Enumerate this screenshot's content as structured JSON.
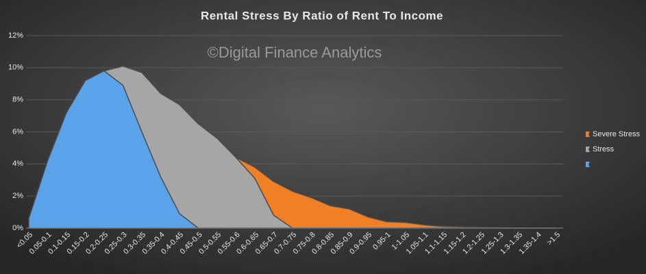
{
  "chart_data": {
    "type": "area",
    "title": "Rental Stress By Ratio of Rent To Income",
    "watermark": "©Digital Finance Analytics",
    "categories": [
      "<0.05",
      "0.05-0.1",
      "0.1-0.15",
      "0.15-0.2",
      "0.2-0.25",
      "0.25-0.3",
      "0.3-0.35",
      "0.35-0.4",
      "0.4-0.45",
      "0.45-0.5",
      "0.5-0.55",
      "0.55-0.6",
      "0.6-0.65",
      "0.65-0.7",
      "0.7-0.75",
      "0.75-0.8",
      "0.8-0.85",
      "0.85-0.9",
      "0.9-0.95",
      "0.95-1",
      "1-1.05",
      "1.05-1.1",
      "1.1-1.15",
      "1.15-1.2",
      "1.2-1.25",
      "1.25-1.3",
      "1.3-1.35",
      "1.35-1.4",
      ">1.5"
    ],
    "series": [
      {
        "color": "#5ba3e8",
        "values": [
          0.6,
          4.2,
          7.2,
          9.2,
          9.8,
          8.9,
          6.0,
          3.2,
          0.9,
          0,
          0,
          0,
          0,
          0,
          0,
          0,
          0,
          0,
          0,
          0,
          0,
          0,
          0,
          0,
          0,
          0,
          0,
          0,
          0
        ]
      },
      {
        "name": "Stress",
        "color": "#a6a6a6",
        "values": [
          0,
          0,
          0,
          0,
          9.8,
          10.1,
          9.7,
          8.4,
          7.7,
          6.5,
          5.6,
          4.4,
          3.1,
          0.8,
          0,
          0,
          0,
          0,
          0,
          0,
          0,
          0,
          0,
          0,
          0,
          0,
          0,
          0,
          0
        ]
      },
      {
        "name": "Severe Stress",
        "color": "#f07f26",
        "values": [
          0,
          0,
          0,
          0,
          0,
          0,
          0,
          0,
          0,
          0,
          0,
          4.4,
          3.8,
          2.9,
          2.3,
          1.9,
          1.4,
          1.2,
          0.7,
          0.4,
          0.35,
          0.2,
          0.1,
          0.08,
          0.05,
          0.02,
          0.01,
          0,
          0
        ]
      }
    ],
    "ylim": [
      0,
      12
    ],
    "yticks": [
      {
        "value": 0,
        "label": "0%"
      },
      {
        "value": 2,
        "label": "2%"
      },
      {
        "value": 4,
        "label": "4%"
      },
      {
        "value": 6,
        "label": "6%"
      },
      {
        "value": 8,
        "label": "8%"
      },
      {
        "value": 10,
        "label": "10%"
      },
      {
        "value": 12,
        "label": "12%"
      }
    ],
    "grid": true
  }
}
